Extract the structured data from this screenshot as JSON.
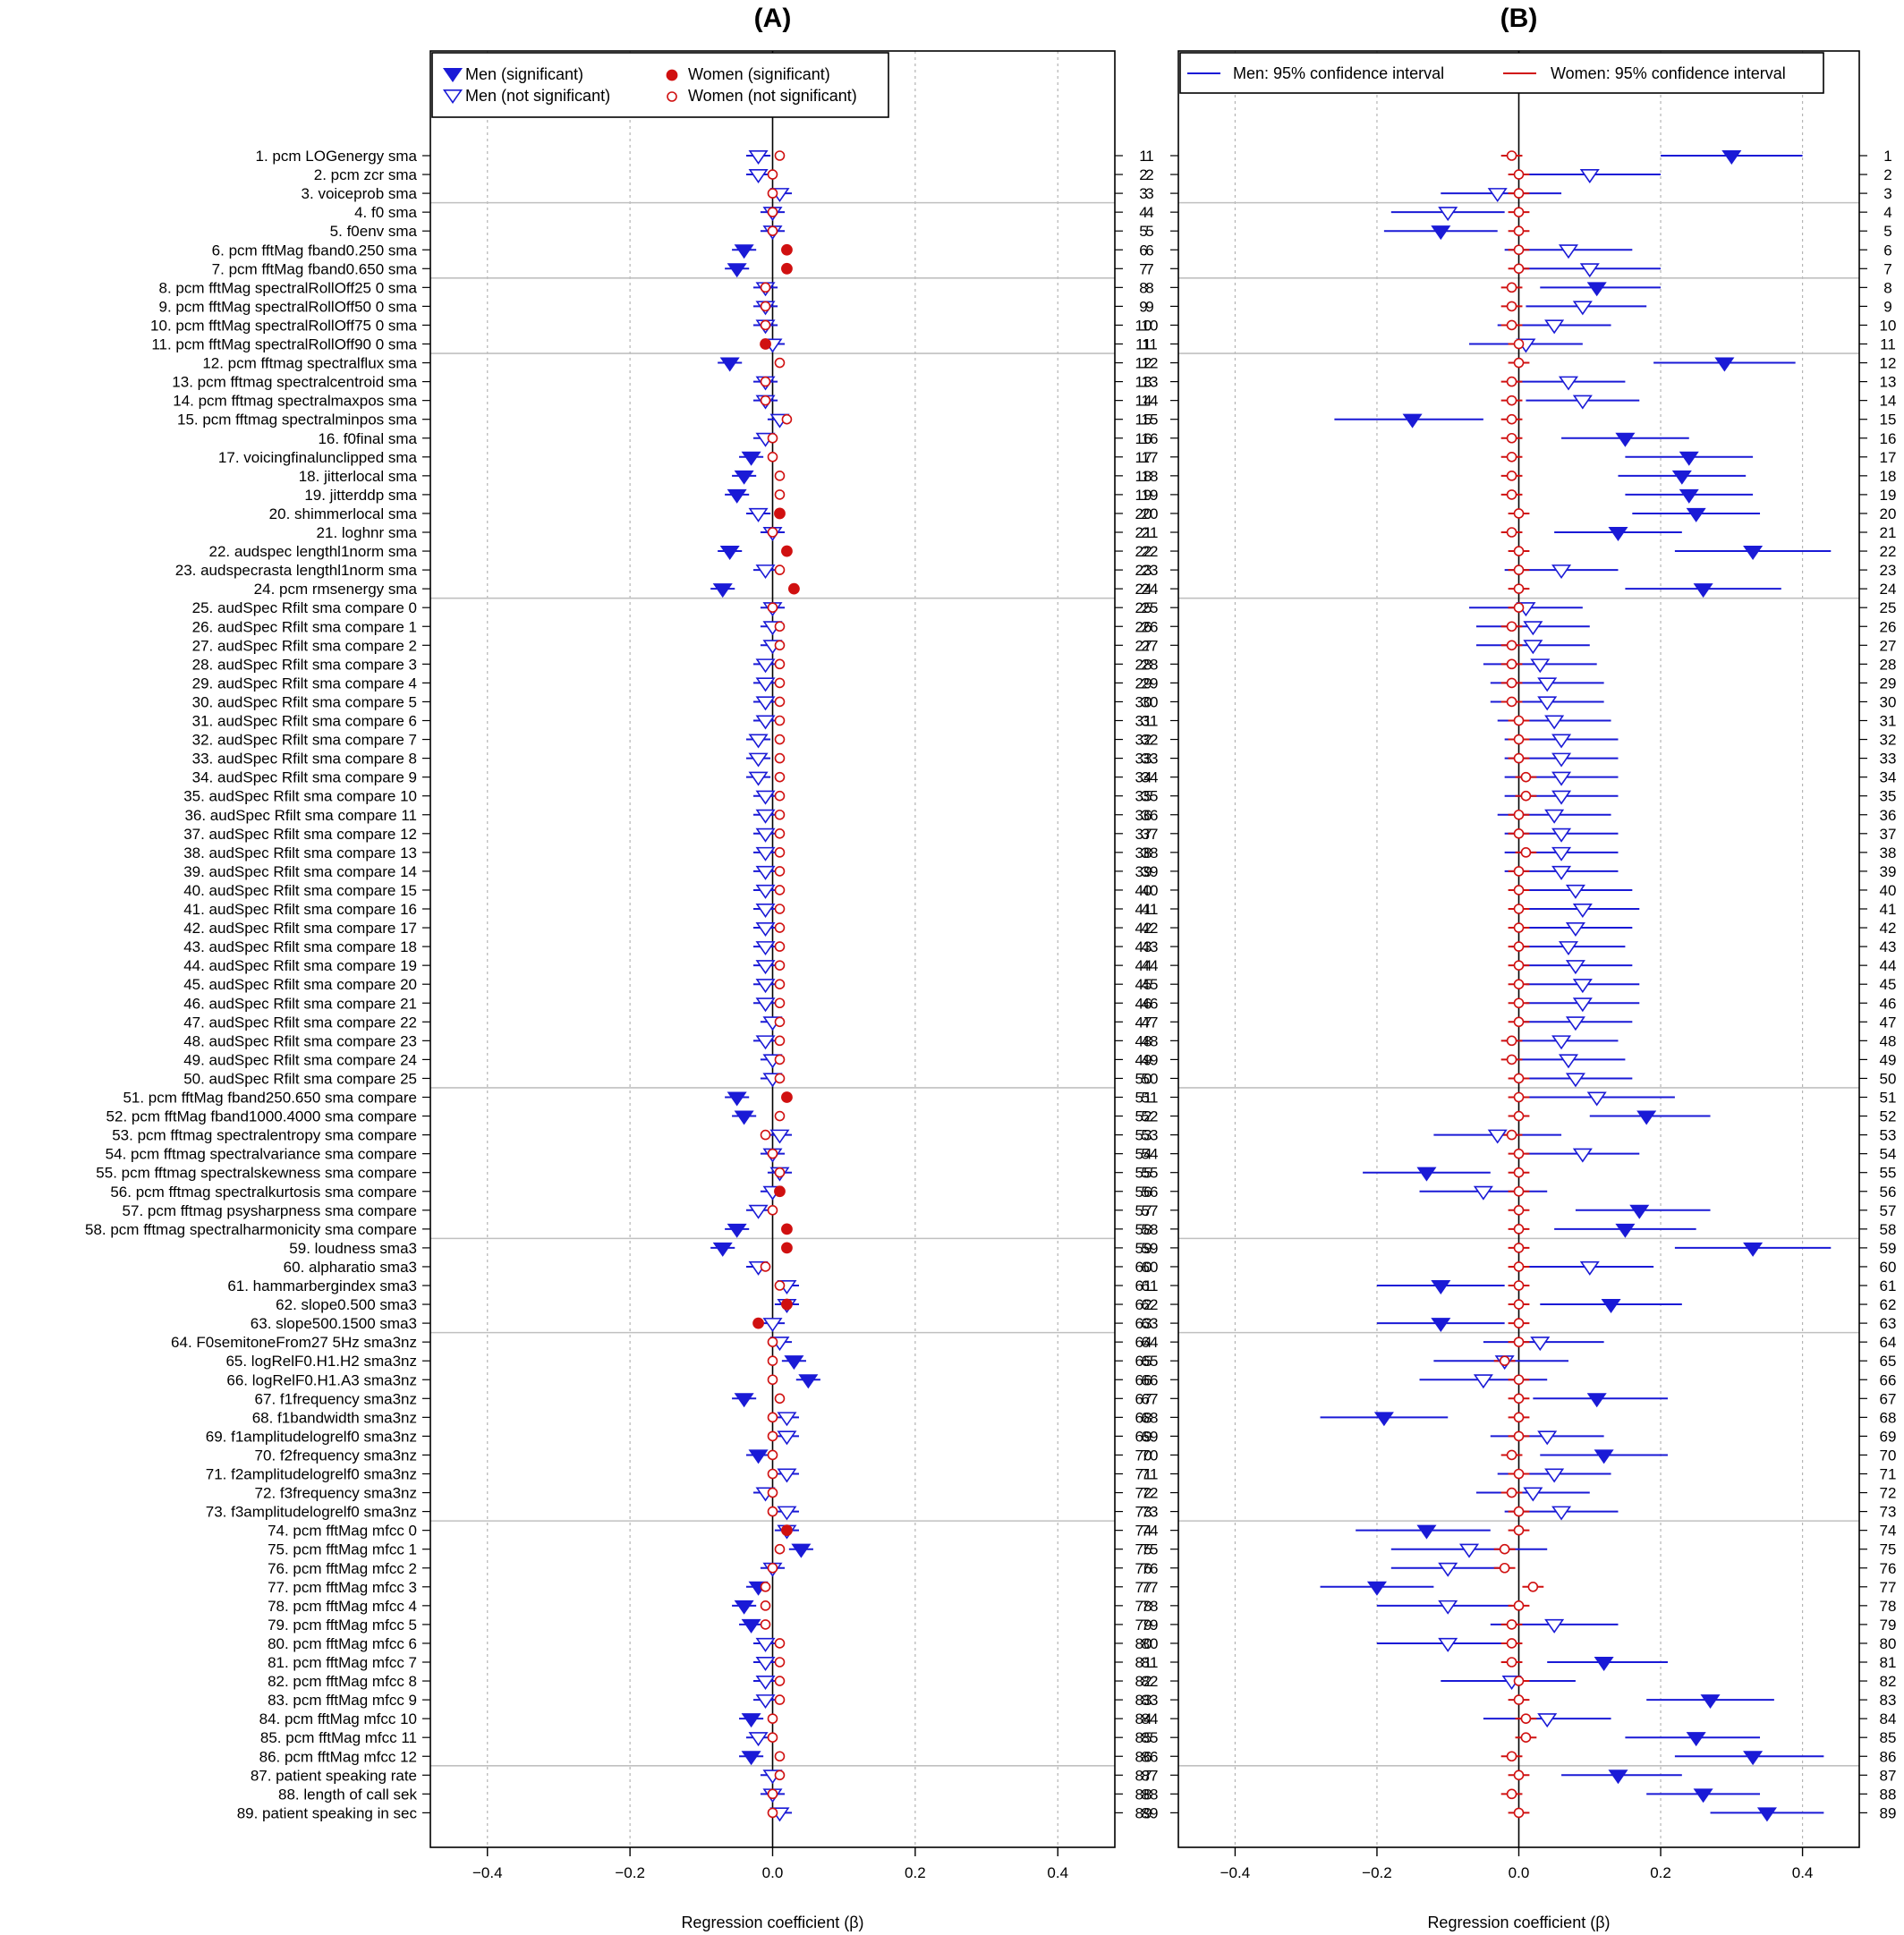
{
  "colors": {
    "men": "#1a1ad6",
    "women": "#d01010",
    "grid": "#b4b4b4",
    "separator": "#c0c0c0"
  },
  "legend_a": {
    "men_sig": "Men (significant)",
    "men_nonsig": "Men (not significant)",
    "women_sig": "Women (significant)",
    "women_nonsig": "Women (not significant)"
  },
  "legend_b": {
    "men_ci": "Men: 95% confidence interval",
    "women_ci": "Women: 95% confidence interval"
  },
  "chart_data": [
    {
      "panel": "(A)",
      "type": "forest",
      "xlabel": "Regression coefficient (β)",
      "xlim": [
        -0.48,
        0.48
      ],
      "xticks": [
        -0.4,
        -0.2,
        0.0,
        0.2,
        0.4
      ],
      "tick_labels": [
        "−0.4",
        "−0.2",
        "0.0",
        "0.2",
        "0.4"
      ],
      "grid": "vertical dotted at ticks",
      "legend": "top",
      "group_separators_after_row": [
        3,
        7,
        11,
        24,
        50,
        58,
        63,
        73,
        86
      ],
      "men": {
        "beta": [
          -0.02,
          -0.02,
          0.01,
          0.0,
          0.0,
          -0.04,
          -0.05,
          -0.01,
          -0.01,
          -0.01,
          0.0,
          -0.06,
          -0.01,
          -0.01,
          0.01,
          -0.01,
          -0.03,
          -0.04,
          -0.05,
          -0.02,
          0.0,
          -0.06,
          -0.01,
          -0.07,
          0.0,
          0.0,
          0.0,
          -0.01,
          -0.01,
          -0.01,
          -0.01,
          -0.02,
          -0.02,
          -0.02,
          -0.01,
          -0.01,
          -0.01,
          -0.01,
          -0.01,
          -0.01,
          -0.01,
          -0.01,
          -0.01,
          -0.01,
          -0.01,
          -0.01,
          0.0,
          -0.01,
          0.0,
          0.0,
          -0.05,
          -0.04,
          0.01,
          0.0,
          0.01,
          0.0,
          -0.02,
          -0.05,
          -0.07,
          -0.02,
          0.02,
          0.02,
          0.0,
          0.01,
          0.03,
          0.05,
          -0.04,
          0.02,
          0.02,
          -0.02,
          0.02,
          -0.01,
          0.02,
          0.02,
          0.04,
          0.0,
          -0.02,
          -0.04,
          -0.03,
          -0.01,
          -0.01,
          -0.01,
          -0.01,
          -0.03,
          -0.02,
          -0.03,
          0.0,
          0.0,
          0.01
        ],
        "sig": [
          0,
          0,
          0,
          0,
          0,
          1,
          1,
          0,
          0,
          0,
          0,
          1,
          0,
          0,
          0,
          0,
          1,
          1,
          1,
          0,
          0,
          1,
          0,
          1,
          0,
          0,
          0,
          0,
          0,
          0,
          0,
          0,
          0,
          0,
          0,
          0,
          0,
          0,
          0,
          0,
          0,
          0,
          0,
          0,
          0,
          0,
          0,
          0,
          0,
          0,
          1,
          1,
          0,
          0,
          0,
          0,
          0,
          1,
          1,
          0,
          0,
          0,
          0,
          0,
          1,
          1,
          1,
          0,
          0,
          1,
          0,
          0,
          0,
          0,
          1,
          0,
          1,
          1,
          1,
          0,
          0,
          0,
          0,
          1,
          0,
          1,
          0,
          0,
          0
        ]
      },
      "women": {
        "beta": [
          0.01,
          0.0,
          0.0,
          0.0,
          0.0,
          0.02,
          0.02,
          -0.01,
          -0.01,
          -0.01,
          -0.01,
          0.01,
          -0.01,
          -0.01,
          0.02,
          0.0,
          0.0,
          0.01,
          0.01,
          0.01,
          0.0,
          0.02,
          0.01,
          0.03,
          0.0,
          0.01,
          0.01,
          0.01,
          0.01,
          0.01,
          0.01,
          0.01,
          0.01,
          0.01,
          0.01,
          0.01,
          0.01,
          0.01,
          0.01,
          0.01,
          0.01,
          0.01,
          0.01,
          0.01,
          0.01,
          0.01,
          0.01,
          0.01,
          0.01,
          0.01,
          0.02,
          0.01,
          -0.01,
          0.0,
          0.01,
          0.01,
          0.0,
          0.02,
          0.02,
          -0.01,
          0.01,
          0.02,
          -0.02,
          0.0,
          0.0,
          0.0,
          0.01,
          0.0,
          0.0,
          0.0,
          0.0,
          0.0,
          0.0,
          0.02,
          0.01,
          0.0,
          -0.01,
          -0.01,
          -0.01,
          0.01,
          0.01,
          0.01,
          0.01,
          0.0,
          0.0,
          0.01,
          0.01,
          0.0,
          0.0
        ],
        "sig": [
          0,
          0,
          0,
          0,
          0,
          1,
          1,
          0,
          0,
          0,
          1,
          0,
          0,
          0,
          0,
          0,
          0,
          0,
          0,
          1,
          0,
          1,
          0,
          1,
          0,
          0,
          0,
          0,
          0,
          0,
          0,
          0,
          0,
          0,
          0,
          0,
          0,
          0,
          0,
          0,
          0,
          0,
          0,
          0,
          0,
          0,
          0,
          0,
          0,
          0,
          1,
          0,
          0,
          0,
          0,
          1,
          0,
          1,
          1,
          0,
          0,
          1,
          1,
          0,
          0,
          0,
          0,
          0,
          0,
          0,
          0,
          0,
          0,
          1,
          0,
          0,
          0,
          0,
          0,
          0,
          0,
          0,
          0,
          0,
          0,
          0,
          0,
          0,
          0
        ]
      }
    },
    {
      "panel": "(B)",
      "type": "forest",
      "xlabel": "Regression coefficient (β)",
      "xlim": [
        -0.48,
        0.48
      ],
      "xticks": [
        -0.4,
        -0.2,
        0.0,
        0.2,
        0.4
      ],
      "tick_labels": [
        "−0.4",
        "−0.2",
        "0.0",
        "0.2",
        "0.4"
      ],
      "grid": "vertical dotted at ticks",
      "legend": "top",
      "group_separators_after_row": [
        3,
        7,
        11,
        24,
        50,
        58,
        63,
        73,
        86
      ],
      "men": {
        "beta": [
          0.3,
          0.1,
          -0.03,
          -0.1,
          -0.11,
          0.07,
          0.1,
          0.11,
          0.09,
          0.05,
          0.01,
          0.29,
          0.07,
          0.09,
          -0.15,
          0.15,
          0.24,
          0.23,
          0.24,
          0.25,
          0.14,
          0.33,
          0.06,
          0.26,
          0.01,
          0.02,
          0.02,
          0.03,
          0.04,
          0.04,
          0.05,
          0.06,
          0.06,
          0.06,
          0.06,
          0.05,
          0.06,
          0.06,
          0.06,
          0.08,
          0.09,
          0.08,
          0.07,
          0.08,
          0.09,
          0.09,
          0.08,
          0.06,
          0.07,
          0.08,
          0.11,
          0.18,
          -0.03,
          0.09,
          -0.13,
          -0.05,
          0.17,
          0.15,
          0.33,
          0.1,
          -0.11,
          0.13,
          -0.11,
          0.03,
          -0.02,
          -0.05,
          0.11,
          -0.19,
          0.04,
          0.12,
          0.05,
          0.02,
          0.06,
          -0.13,
          -0.07,
          -0.1,
          -0.2,
          -0.1,
          0.05,
          -0.1,
          0.12,
          -0.01,
          0.27,
          0.04,
          0.25,
          0.33,
          0.14,
          0.26,
          0.35
        ],
        "lo": [
          0.2,
          0.0,
          -0.11,
          -0.18,
          -0.19,
          -0.02,
          0.0,
          0.03,
          0.01,
          -0.03,
          -0.07,
          0.19,
          -0.01,
          0.01,
          -0.26,
          0.06,
          0.15,
          0.14,
          0.15,
          0.16,
          0.05,
          0.22,
          -0.02,
          0.15,
          -0.07,
          -0.06,
          -0.06,
          -0.05,
          -0.04,
          -0.04,
          -0.03,
          -0.02,
          -0.02,
          -0.02,
          -0.02,
          -0.03,
          -0.02,
          -0.02,
          -0.02,
          0.0,
          0.01,
          0.0,
          -0.01,
          0.0,
          0.01,
          0.01,
          0.0,
          -0.02,
          -0.01,
          0.0,
          0.01,
          0.1,
          -0.12,
          0.01,
          -0.22,
          -0.14,
          0.08,
          0.05,
          0.22,
          0.01,
          -0.2,
          0.03,
          -0.2,
          -0.05,
          -0.12,
          -0.14,
          0.02,
          -0.28,
          -0.04,
          0.03,
          -0.03,
          -0.06,
          -0.02,
          -0.23,
          -0.18,
          -0.18,
          -0.28,
          -0.2,
          -0.04,
          -0.2,
          0.04,
          -0.11,
          0.18,
          -0.05,
          0.15,
          0.22,
          0.06,
          0.18,
          0.27
        ],
        "hi": [
          0.4,
          0.2,
          0.06,
          -0.02,
          -0.03,
          0.16,
          0.2,
          0.2,
          0.18,
          0.13,
          0.09,
          0.39,
          0.15,
          0.17,
          -0.05,
          0.24,
          0.33,
          0.32,
          0.33,
          0.34,
          0.23,
          0.44,
          0.14,
          0.37,
          0.09,
          0.1,
          0.1,
          0.11,
          0.12,
          0.12,
          0.13,
          0.14,
          0.14,
          0.14,
          0.14,
          0.13,
          0.14,
          0.14,
          0.14,
          0.16,
          0.17,
          0.16,
          0.15,
          0.16,
          0.17,
          0.17,
          0.16,
          0.14,
          0.15,
          0.16,
          0.22,
          0.27,
          0.06,
          0.17,
          -0.04,
          0.04,
          0.27,
          0.25,
          0.44,
          0.19,
          -0.02,
          0.23,
          -0.02,
          0.12,
          0.07,
          0.04,
          0.21,
          -0.1,
          0.12,
          0.21,
          0.13,
          0.1,
          0.14,
          -0.04,
          0.04,
          -0.02,
          -0.12,
          -0.01,
          0.14,
          -0.01,
          0.21,
          0.08,
          0.36,
          0.13,
          0.34,
          0.43,
          0.23,
          0.34,
          0.43
        ],
        "sig": [
          1,
          0,
          0,
          0,
          1,
          0,
          0,
          1,
          0,
          0,
          0,
          1,
          0,
          0,
          1,
          1,
          1,
          1,
          1,
          1,
          1,
          1,
          0,
          1,
          0,
          0,
          0,
          0,
          0,
          0,
          0,
          0,
          0,
          0,
          0,
          0,
          0,
          0,
          0,
          0,
          0,
          0,
          0,
          0,
          0,
          0,
          0,
          0,
          0,
          0,
          0,
          1,
          0,
          0,
          1,
          0,
          1,
          1,
          1,
          0,
          1,
          1,
          1,
          0,
          0,
          0,
          1,
          1,
          0,
          1,
          0,
          0,
          0,
          1,
          0,
          0,
          1,
          0,
          0,
          0,
          1,
          0,
          1,
          0,
          1,
          1,
          1,
          1,
          1
        ]
      },
      "women": {
        "beta": [
          -0.01,
          0.0,
          0.0,
          0.0,
          0.0,
          0.0,
          0.0,
          -0.01,
          -0.01,
          -0.01,
          0.0,
          0.0,
          -0.01,
          -0.01,
          -0.01,
          -0.01,
          -0.01,
          -0.01,
          -0.01,
          0.0,
          -0.01,
          0.0,
          0.0,
          0.0,
          0.0,
          -0.01,
          -0.01,
          -0.01,
          -0.01,
          -0.01,
          0.0,
          0.0,
          0.0,
          0.01,
          0.01,
          0.0,
          0.0,
          0.01,
          0.0,
          0.0,
          0.0,
          0.0,
          0.0,
          0.0,
          0.0,
          0.0,
          0.0,
          -0.01,
          -0.01,
          0.0,
          0.0,
          0.0,
          -0.01,
          0.0,
          0.0,
          0.0,
          0.0,
          0.0,
          0.0,
          0.0,
          0.0,
          0.0,
          0.0,
          0.0,
          -0.02,
          0.0,
          0.0,
          0.0,
          0.0,
          -0.01,
          0.0,
          -0.01,
          0.0,
          0.0,
          -0.02,
          -0.02,
          0.02,
          0.0,
          -0.01,
          -0.01,
          -0.01,
          0.0,
          0.0,
          0.01,
          0.01,
          -0.01,
          0.0,
          -0.01,
          0.0
        ],
        "ci_half_width": 0.015
      }
    }
  ],
  "row_labels": [
    "1.   pcm LOGenergy sma",
    "2.   pcm zcr sma",
    "3.   voiceprob sma",
    "4.   f0 sma",
    "5.   f0env sma",
    "6.   pcm fftMag fband0.250 sma",
    "7.   pcm fftMag fband0.650 sma",
    "8.   pcm fftMag spectralRollOff25 0 sma",
    "9.   pcm fftMag spectralRollOff50 0 sma",
    "10.   pcm fftMag spectralRollOff75 0 sma",
    "11.   pcm fftMag spectralRollOff90 0 sma",
    "12.   pcm fftmag spectralflux sma",
    "13.   pcm fftmag spectralcentroid sma",
    "14.   pcm fftmag spectralmaxpos sma",
    "15.   pcm fftmag spectralminpos sma",
    "16.   f0final sma",
    "17.   voicingfinalunclipped sma",
    "18.   jitterlocal sma",
    "19.   jitterddp sma",
    "20.   shimmerlocal sma",
    "21.   loghnr sma",
    "22.   audspec lengthl1norm sma",
    "23.   audspecrasta lengthl1norm sma",
    "24.   pcm rmsenergy sma",
    "25.   audSpec Rfilt sma compare 0",
    "26.   audSpec Rfilt sma compare 1",
    "27.   audSpec Rfilt sma compare 2",
    "28.   audSpec Rfilt sma compare 3",
    "29.   audSpec Rfilt sma compare 4",
    "30.   audSpec Rfilt sma compare 5",
    "31.   audSpec Rfilt sma compare 6",
    "32.   audSpec Rfilt sma compare 7",
    "33.   audSpec Rfilt sma compare 8",
    "34.   audSpec Rfilt sma compare 9",
    "35.   audSpec Rfilt sma compare 10",
    "36.   audSpec Rfilt sma compare 11",
    "37.   audSpec Rfilt sma compare 12",
    "38.   audSpec Rfilt sma compare 13",
    "39.   audSpec Rfilt sma compare 14",
    "40.   audSpec Rfilt sma compare 15",
    "41.   audSpec Rfilt sma compare 16",
    "42.   audSpec Rfilt sma compare 17",
    "43.   audSpec Rfilt sma compare 18",
    "44.   audSpec Rfilt sma compare 19",
    "45.   audSpec Rfilt sma compare 20",
    "46.   audSpec Rfilt sma compare 21",
    "47.   audSpec Rfilt sma compare 22",
    "48.   audSpec Rfilt sma compare 23",
    "49.   audSpec Rfilt sma compare 24",
    "50.   audSpec Rfilt sma compare 25",
    "51.   pcm fftMag fband250.650 sma compare",
    "52.   pcm fftMag fband1000.4000 sma compare",
    "53.   pcm fftmag spectralentropy sma compare",
    "54.   pcm fftmag spectralvariance sma compare",
    "55.   pcm fftmag spectralskewness sma compare",
    "56.   pcm fftmag spectralkurtosis sma compare",
    "57.   pcm fftmag psysharpness sma compare",
    "58.   pcm fftmag spectralharmonicity sma compare",
    "59.   loudness sma3",
    "60.   alpharatio sma3",
    "61.   hammarbergindex sma3",
    "62.   slope0.500 sma3",
    "63.   slope500.1500 sma3",
    "64.   F0semitoneFrom27 5Hz sma3nz",
    "65.   logRelF0.H1.H2 sma3nz",
    "66.   logRelF0.H1.A3 sma3nz",
    "67.   f1frequency sma3nz",
    "68.   f1bandwidth sma3nz",
    "69.   f1amplitudelogrelf0 sma3nz",
    "70.   f2frequency sma3nz",
    "71.   f2amplitudelogrelf0 sma3nz",
    "72.   f3frequency sma3nz",
    "73.   f3amplitudelogrelf0 sma3nz",
    "74.   pcm fftMag mfcc 0",
    "75.   pcm fftMag mfcc 1",
    "76.   pcm fftMag mfcc 2",
    "77.   pcm fftMag mfcc 3",
    "78.   pcm fftMag mfcc 4",
    "79.   pcm fftMag mfcc 5",
    "80.   pcm fftMag mfcc 6",
    "81.   pcm fftMag mfcc 7",
    "82.   pcm fftMag mfcc 8",
    "83.   pcm fftMag mfcc 9",
    "84.   pcm fftMag mfcc 10",
    "85.   pcm fftMag mfcc 11",
    "86.   pcm fftMag mfcc 12",
    "87.   patient speaking rate",
    "88.   length of call sek",
    "89.   patient speaking in sec"
  ]
}
